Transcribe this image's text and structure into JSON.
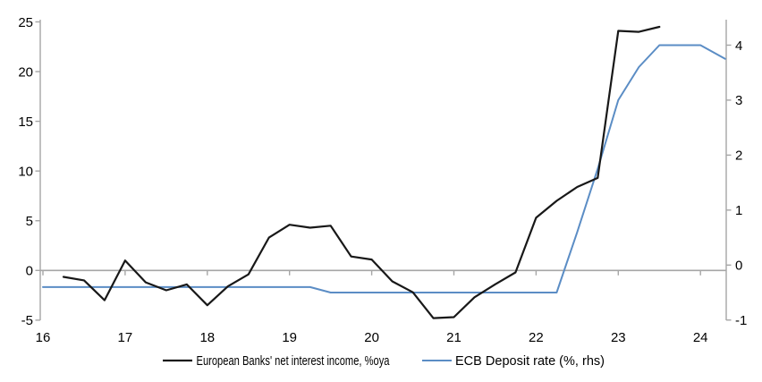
{
  "chart_data": {
    "type": "line",
    "title": "",
    "grid": false,
    "legend_position": "bottom",
    "colors": {
      "axis": "#a6a6a6",
      "text": "#000000",
      "background": "#ffffff"
    },
    "x_axis": {
      "tick_labels": [
        "16",
        "17",
        "18",
        "19",
        "20",
        "21",
        "22",
        "23",
        "24"
      ],
      "tick_values": [
        16,
        17,
        18,
        19,
        20,
        21,
        22,
        23,
        24
      ],
      "range": [
        16,
        24.32
      ]
    },
    "left_y_axis": {
      "tick_values": [
        -5,
        0,
        5,
        10,
        15,
        20,
        25
      ],
      "range": [
        -5,
        25.1
      ],
      "measures": "European Banks' net interest income, %oya"
    },
    "right_y_axis": {
      "tick_values": [
        -1,
        0,
        1,
        2,
        3,
        4
      ],
      "range": [
        -1.1,
        4.55
      ],
      "measures": "ECB Deposit rate (%, rhs)"
    },
    "series": [
      {
        "name": "European Banks' net interest income, %oya",
        "axis": "left",
        "color": "#181818",
        "stroke_width": 2.2,
        "x": [
          16.25,
          16.5,
          16.75,
          17.0,
          17.25,
          17.5,
          17.75,
          18.0,
          18.25,
          18.5,
          18.75,
          19.0,
          19.25,
          19.5,
          19.75,
          20.0,
          20.25,
          20.5,
          20.75,
          21.0,
          21.25,
          21.5,
          21.75,
          22.0,
          22.25,
          22.5,
          22.75,
          23.0,
          23.25,
          23.5
        ],
        "values": [
          -0.65,
          -1.0,
          -3.0,
          1.0,
          -1.2,
          -2.0,
          -1.4,
          -3.5,
          -1.6,
          -0.4,
          3.3,
          4.6,
          4.3,
          4.5,
          1.4,
          1.1,
          -1.1,
          -2.2,
          -4.8,
          -4.7,
          -2.7,
          -1.4,
          -0.2,
          5.3,
          7.0,
          8.4,
          9.3,
          24.1,
          24.0,
          24.5
        ]
      },
      {
        "name": "ECB Deposit rate (%, rhs)",
        "axis": "right",
        "color": "#5b8dc5",
        "stroke_width": 2,
        "x": [
          16.0,
          16.25,
          16.5,
          16.75,
          17.0,
          17.25,
          17.5,
          17.75,
          18.0,
          18.25,
          18.5,
          18.75,
          19.0,
          19.25,
          19.5,
          19.75,
          20.0,
          20.25,
          20.5,
          20.75,
          21.0,
          21.25,
          21.5,
          21.75,
          22.0,
          22.25,
          22.5,
          22.75,
          23.0,
          23.25,
          23.5,
          23.75,
          24.0,
          24.3
        ],
        "values": [
          -0.4,
          -0.4,
          -0.4,
          -0.4,
          -0.4,
          -0.4,
          -0.4,
          -0.4,
          -0.4,
          -0.4,
          -0.4,
          -0.4,
          -0.4,
          -0.4,
          -0.5,
          -0.5,
          -0.5,
          -0.5,
          -0.5,
          -0.5,
          -0.5,
          -0.5,
          -0.5,
          -0.5,
          -0.5,
          -0.5,
          0.6,
          1.75,
          3.0,
          3.6,
          4.0,
          4.0,
          4.0,
          3.75
        ]
      }
    ]
  }
}
